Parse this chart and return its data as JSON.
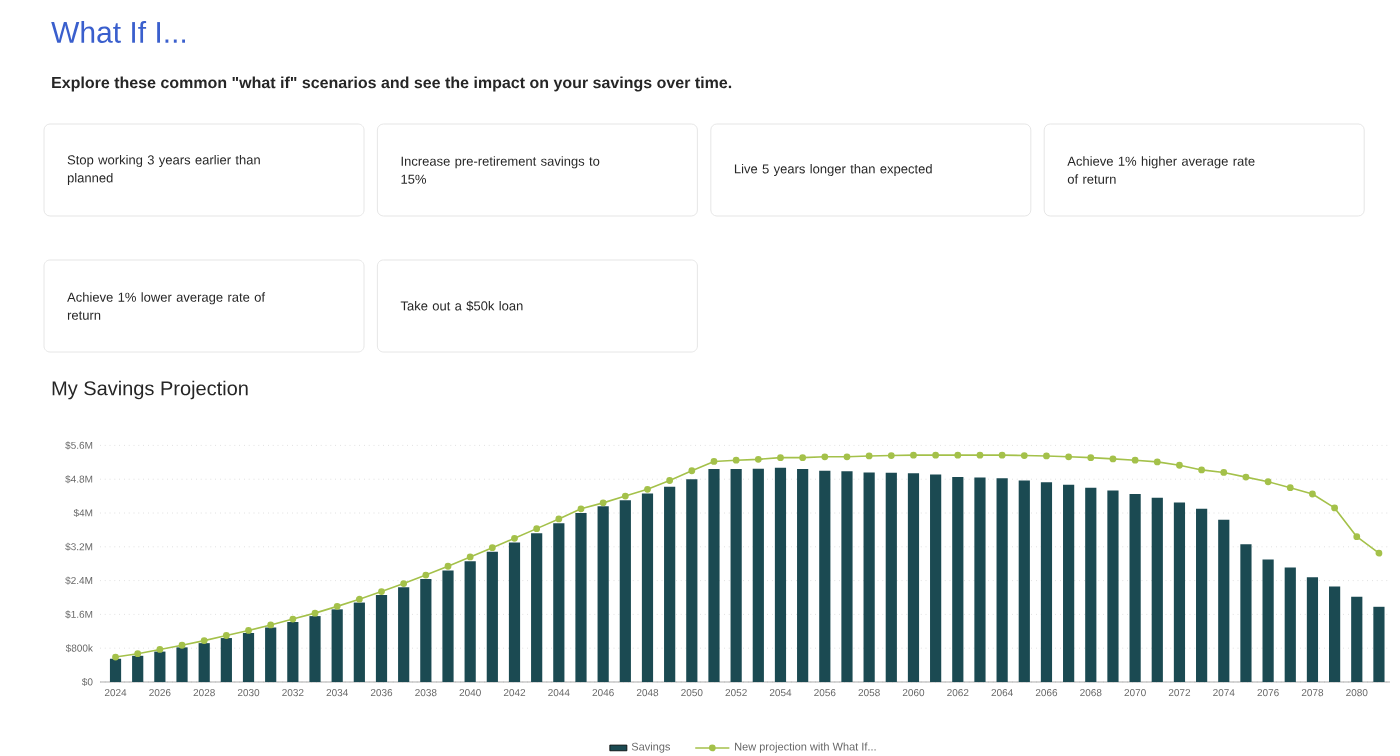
{
  "chart_data": [
    {
      "type": "other",
      "title": "What If I...",
      "subtitle": "Explore these common \"what if\" scenarios and see the impact on your savings over time.",
      "annotations": [
        "Stop working 3 years earlier than planned",
        "Increase pre-retirement savings to 15%",
        "Live 5 years longer than expected",
        "Achieve 1% higher average rate of return",
        "Achieve 1% lower average rate of return",
        "Take out a $50k loan"
      ]
    },
    {
      "type": "bar",
      "title": "My Savings Projection",
      "categories": [
        "2024",
        null,
        "2026",
        null,
        "2028",
        null,
        "2030",
        null,
        "2032",
        null,
        "2034",
        null,
        "2036",
        null,
        "2038",
        null,
        "2040",
        null,
        "2042",
        null,
        "2044",
        null,
        "2046",
        null,
        "2048",
        null,
        "2050",
        null,
        "2052",
        null,
        "2054",
        null,
        "2056",
        null,
        "2058",
        null,
        "2060",
        null,
        "2062",
        null,
        "2064",
        null,
        "2066",
        null,
        "2068",
        null,
        "2070",
        null,
        "2072",
        null,
        "2074",
        null,
        "2076",
        null,
        "2078",
        null,
        "2080",
        null
      ],
      "series": [
        {
          "name": "Savings",
          "color": "#1b4a52",
          "values": [
            550000,
            620000,
            720000,
            820000,
            920000,
            1040000,
            1160000,
            1290000,
            1420000,
            1560000,
            1720000,
            1880000,
            2060000,
            2240000,
            2440000,
            2640000,
            2860000,
            3080000,
            3300000,
            3520000,
            3760000,
            4000000,
            4160000,
            4300000,
            4460000,
            4620000,
            4800000,
            5040000,
            5040000,
            5050000,
            5070000,
            5040000,
            5000000,
            4990000,
            4960000,
            4950000,
            4940000,
            4910000,
            4850000,
            4840000,
            4820000,
            4770000,
            4730000,
            4670000,
            4600000,
            4530000,
            4450000,
            4360000,
            4250000,
            4100000,
            3840000,
            3260000,
            2900000,
            2710000,
            2480000,
            2260000,
            2020000,
            1780000
          ]
        },
        {
          "name": "New projection with What If...",
          "type": "line",
          "color": "#a4c14a",
          "marker": "circle",
          "values": [
            590000,
            670000,
            770000,
            870000,
            980000,
            1100000,
            1220000,
            1350000,
            1490000,
            1630000,
            1790000,
            1960000,
            2140000,
            2330000,
            2530000,
            2740000,
            2960000,
            3180000,
            3400000,
            3630000,
            3860000,
            4100000,
            4240000,
            4400000,
            4560000,
            4770000,
            5000000,
            5220000,
            5250000,
            5270000,
            5310000,
            5310000,
            5330000,
            5330000,
            5350000,
            5360000,
            5370000,
            5370000,
            5370000,
            5370000,
            5370000,
            5360000,
            5350000,
            5330000,
            5310000,
            5280000,
            5250000,
            5210000,
            5130000,
            5020000,
            4960000,
            4850000,
            4740000,
            4600000,
            4450000,
            4120000,
            3440000,
            3050000
          ]
        }
      ],
      "ylim": [
        0,
        5600000
      ],
      "yticks": [
        {
          "value": 0,
          "label": "$0"
        },
        {
          "value": 800000,
          "label": "$800k"
        },
        {
          "value": 1600000,
          "label": "$1.6M"
        },
        {
          "value": 2400000,
          "label": "$2.4M"
        },
        {
          "value": 3200000,
          "label": "$3.2M"
        },
        {
          "value": 4000000,
          "label": "$4M"
        },
        {
          "value": 4800000,
          "label": "$4.8M"
        },
        {
          "value": 5600000,
          "label": "$5.6M"
        }
      ],
      "grid": "y",
      "legend": "bottom"
    }
  ]
}
